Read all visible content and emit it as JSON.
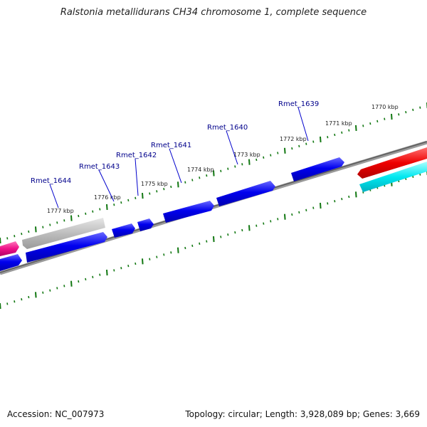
{
  "title": "Ralstonia metallidurans CH34 chromosome 1, complete sequence",
  "footer": {
    "accession": "Accession: NC_007973",
    "summary": "Topology: circular; Length: 3,928,089 bp; Genes: 3,669"
  },
  "colors": {
    "forward_gene": "#0000ee",
    "reverse_gray": "#b8b8b8",
    "reverse_red": "#ee0000",
    "reverse_pink": "#ee1188",
    "cyan_gene": "#00e8f0",
    "backbone": "#777777",
    "tick": "#117711",
    "gene_label": "#00008b"
  },
  "map": {
    "scale_unit": "kbp",
    "scale_kbp": [
      1777,
      1776,
      1775,
      1774,
      1773,
      1772,
      1771,
      1770
    ],
    "scale_labels": [
      "1777 kbp",
      "1776 kbp",
      "1775 kbp",
      "1774 kbp",
      "1773 kbp",
      "1772 kbp",
      "1771 kbp",
      "1770 kbp"
    ],
    "genes": [
      {
        "label": "Rmet_1644"
      },
      {
        "label": "Rmet_1643"
      },
      {
        "label": "Rmet_1642"
      },
      {
        "label": "Rmet_1641"
      },
      {
        "label": "Rmet_1640"
      },
      {
        "label": "Rmet_1639"
      }
    ]
  }
}
